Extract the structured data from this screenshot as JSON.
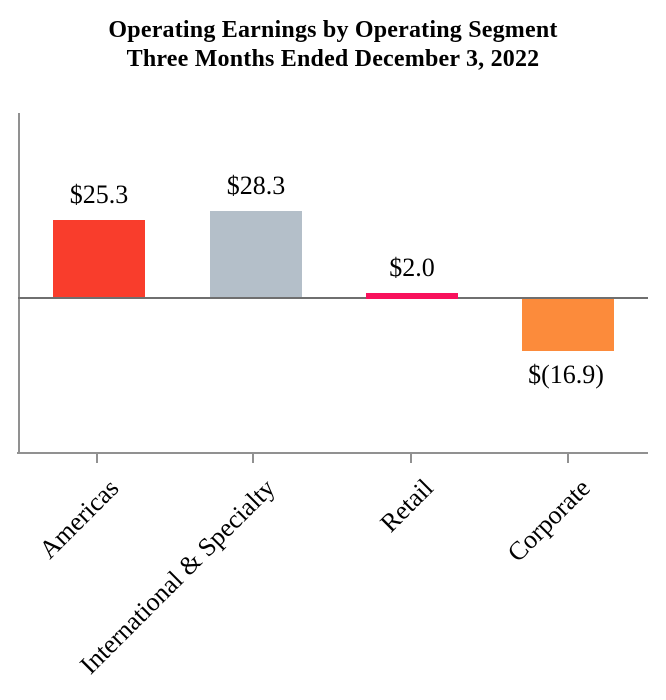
{
  "chart_data": {
    "type": "bar",
    "title": "Operating Earnings by Operating Segment",
    "subtitle": "Three Months Ended December 3, 2022",
    "categories": [
      "Americas",
      "International & Specialty",
      "Retail",
      "Corporate"
    ],
    "values": [
      25.3,
      28.3,
      2.0,
      -16.9
    ],
    "value_labels": [
      "$25.3",
      "$28.3",
      "$2.0",
      "$(16.9)"
    ],
    "bar_colors": [
      "#F93D2C",
      "#B4BFC9",
      "#F8115C",
      "#FC8B3B"
    ],
    "axis_color": "#919191",
    "zero_line_color": "#6F6F6F",
    "text_color": "#000000",
    "background_color": "#FFFFFF",
    "xlabel": "",
    "ylabel": "",
    "ylim": [
      -51,
      61
    ],
    "grid": false,
    "legend": "none",
    "value_label_position": "outside-end",
    "category_label_rotation_deg": 45
  }
}
